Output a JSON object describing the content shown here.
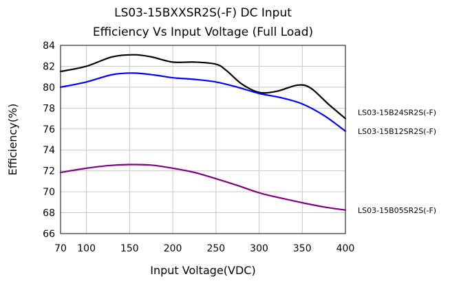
{
  "chart_data": {
    "type": "line",
    "title": "LS03-15BXXSR2S(-F) DC Input",
    "subtitle": "Efficiency Vs Input Voltage (Full Load)",
    "xlabel": "Input Voltage(VDC)",
    "ylabel": "Efficiency(%)",
    "xlim": [
      70,
      400
    ],
    "ylim": [
      66,
      84
    ],
    "xticks": [
      70,
      100,
      150,
      200,
      250,
      300,
      350,
      400
    ],
    "yticks": [
      66,
      68,
      70,
      72,
      74,
      76,
      78,
      80,
      82,
      84
    ],
    "grid": true,
    "legend_placement": "right, labels at line ends",
    "series": [
      {
        "name": "LS03-15B24SR2S(-F)",
        "color": "#000000",
        "x": [
          70,
          100,
          130,
          155,
          175,
          200,
          225,
          250,
          262,
          280,
          300,
          320,
          345,
          360,
          380,
          400
        ],
        "y": [
          81.5,
          82.0,
          82.9,
          83.1,
          82.9,
          82.4,
          82.4,
          82.2,
          81.6,
          80.3,
          79.5,
          79.6,
          80.2,
          79.9,
          78.4,
          77.0
        ]
      },
      {
        "name": "LS03-15B12SR2S(-F)",
        "color": "#0000ff",
        "x": [
          70,
          100,
          130,
          155,
          180,
          200,
          225,
          250,
          275,
          300,
          325,
          350,
          375,
          400
        ],
        "y": [
          80.0,
          80.5,
          81.2,
          81.35,
          81.15,
          80.9,
          80.75,
          80.5,
          80.0,
          79.4,
          79.0,
          78.4,
          77.3,
          75.8
        ]
      },
      {
        "name": "LS03-15B05SR2S(-F)",
        "color": "#800080",
        "x": [
          70,
          100,
          125,
          150,
          175,
          200,
          225,
          250,
          275,
          300,
          325,
          350,
          375,
          400
        ],
        "y": [
          71.85,
          72.25,
          72.5,
          72.6,
          72.55,
          72.25,
          71.85,
          71.25,
          70.6,
          69.9,
          69.4,
          68.95,
          68.55,
          68.25
        ]
      }
    ]
  }
}
